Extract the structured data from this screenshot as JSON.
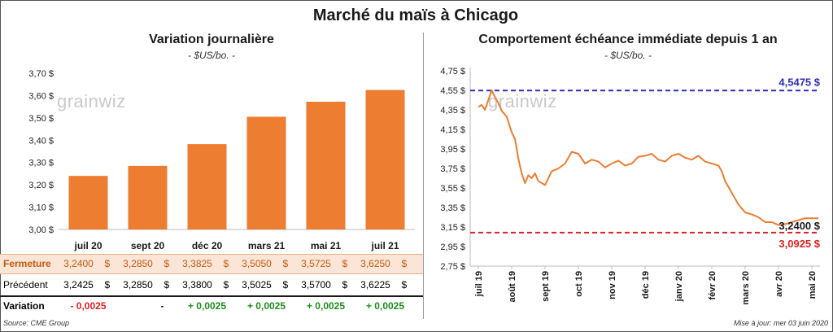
{
  "title": "Marché du maïs à Chicago",
  "watermark": "grainwiz",
  "left_panel": {
    "title": "Variation  journalière",
    "subtitle": "- $US/bo. -"
  },
  "right_panel": {
    "title": "Comportement  échéance immédiate depuis 1 an",
    "subtitle": "- $US/bo. -"
  },
  "table": {
    "currency": "$",
    "rows": [
      {
        "label": "Fermeture",
        "values": [
          "3,2400",
          "3,2850",
          "3,3825",
          "3,5050",
          "3,5725",
          "3,6250"
        ]
      },
      {
        "label": "Précédent",
        "values": [
          "3,2425",
          "3,2850",
          "3,3800",
          "3,5025",
          "3,5700",
          "3,6225"
        ]
      },
      {
        "label": "Variation",
        "values": [
          "- 0,0025",
          "-",
          "+ 0,0025",
          "+ 0,0025",
          "+ 0,0025",
          "+ 0,0025"
        ]
      }
    ]
  },
  "footer": {
    "source": "Source: CME Group",
    "updated": "Mise à jour: mer 03 juin 2020"
  },
  "colors": {
    "bar": "#ED7D31",
    "line": "#ED7D31",
    "high": "#2E2EB8",
    "low": "#E02020",
    "neg": "#E02020",
    "pos": "#1E8C1E",
    "fermeture_bg": "#FBE5D6"
  },
  "chart_data": [
    {
      "type": "bar",
      "title": "Variation  journalière",
      "ylabel": "$US/bo.",
      "categories": [
        "juil 20",
        "sept 20",
        "déc 20",
        "mars 21",
        "mai 21",
        "juil 21"
      ],
      "values": [
        3.24,
        3.285,
        3.3825,
        3.505,
        3.5725,
        3.625
      ],
      "ylim": [
        3.0,
        3.7
      ],
      "yticks": [
        "3,00 $",
        "3,10 $",
        "3,20 $",
        "3,30 $",
        "3,40 $",
        "3,50 $",
        "3,60 $",
        "3,70 $"
      ]
    },
    {
      "type": "line",
      "title": "Comportement  échéance immédiate depuis 1 an",
      "ylabel": "$US/bo.",
      "ylim": [
        2.75,
        4.75
      ],
      "yticks": [
        "2,75 $",
        "2,95 $",
        "3,15 $",
        "3,35 $",
        "3,55 $",
        "3,75 $",
        "3,95 $",
        "4,15 $",
        "4,35 $",
        "4,55 $",
        "4,75 $"
      ],
      "xticks": [
        "juil 19",
        "août 19",
        "sept 19",
        "oct 19",
        "nov 19",
        "déc 19",
        "janv 20",
        "févr 20",
        "mars 20",
        "avr 20",
        "mai 20"
      ],
      "series": [
        {
          "name": "Échéance immédiate",
          "x": [
            0,
            0.1,
            0.2,
            0.3,
            0.4,
            0.5,
            0.6,
            0.7,
            0.85,
            1.0,
            1.1,
            1.2,
            1.3,
            1.4,
            1.5,
            1.6,
            1.7,
            1.8,
            1.9,
            2.0,
            2.2,
            2.4,
            2.6,
            2.8,
            3.0,
            3.1,
            3.2,
            3.4,
            3.6,
            3.8,
            4.0,
            4.2,
            4.4,
            4.6,
            4.8,
            5.0,
            5.2,
            5.4,
            5.6,
            5.8,
            6.0,
            6.2,
            6.4,
            6.6,
            6.8,
            7.0,
            7.2,
            7.3,
            7.4,
            7.6,
            7.8,
            8.0,
            8.2,
            8.4,
            8.6,
            8.8,
            9.0,
            9.2,
            9.4,
            9.6,
            9.8,
            10.0,
            10.2
          ],
          "values": [
            4.38,
            4.4,
            4.35,
            4.45,
            4.55,
            4.48,
            4.42,
            4.34,
            4.28,
            4.12,
            4.05,
            3.85,
            3.7,
            3.6,
            3.68,
            3.65,
            3.7,
            3.62,
            3.6,
            3.58,
            3.72,
            3.75,
            3.8,
            3.92,
            3.9,
            3.85,
            3.8,
            3.84,
            3.82,
            3.76,
            3.8,
            3.83,
            3.78,
            3.8,
            3.87,
            3.88,
            3.9,
            3.84,
            3.82,
            3.88,
            3.9,
            3.86,
            3.84,
            3.88,
            3.82,
            3.8,
            3.78,
            3.72,
            3.62,
            3.5,
            3.38,
            3.3,
            3.28,
            3.25,
            3.2,
            3.2,
            3.17,
            3.18,
            3.2,
            3.22,
            3.24,
            3.24,
            3.24
          ]
        }
      ],
      "reference_lines": [
        {
          "label": "4,5475 $",
          "value": 4.5475
        },
        {
          "label": "3,0925 $",
          "value": 3.0925
        }
      ],
      "last_value_label": "3,2400 $",
      "last_value": 3.24
    }
  ]
}
